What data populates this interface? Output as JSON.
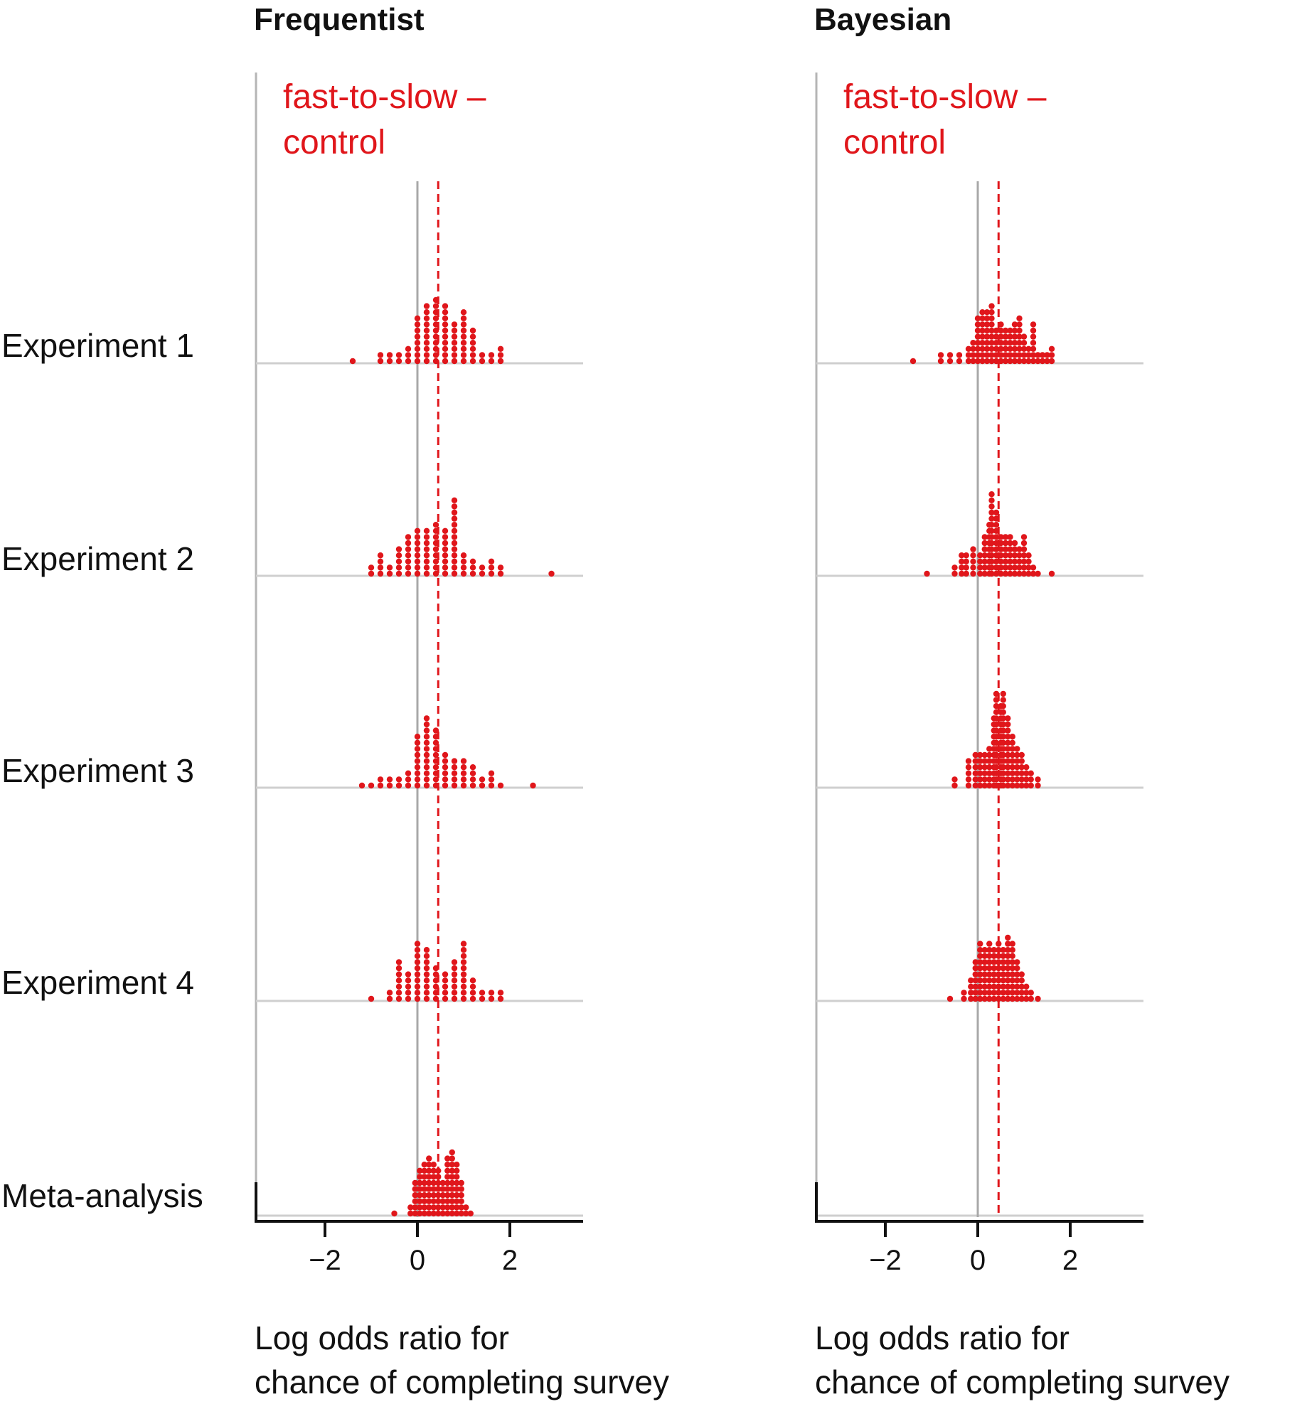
{
  "chart_data": [
    {
      "type": "dotplot",
      "title": "Frequentist",
      "rows": [
        "Experiment 1",
        "Experiment 2",
        "Experiment 3",
        "Experiment 4",
        "Meta-analysis"
      ],
      "xlabel_line1": "Log odds ratio for",
      "xlabel_line2": "chance of completing survey",
      "xticks": [
        -2,
        0,
        2
      ],
      "xtick_labels": [
        "−2",
        "0",
        "2"
      ],
      "xlim": [
        -3.5,
        3.5
      ],
      "reference_line": 0,
      "comparison_label_line1": "fast-to-slow –",
      "comparison_label_line2": "control",
      "mean_line": 0.45,
      "grid": false,
      "dot_color": "#e0161b",
      "series": [
        {
          "bins": [
            [
              -1.4,
              1
            ],
            [
              -0.8,
              2
            ],
            [
              -0.6,
              2
            ],
            [
              -0.4,
              2
            ],
            [
              -0.2,
              3
            ],
            [
              0,
              8
            ],
            [
              0.2,
              10
            ],
            [
              0.4,
              11
            ],
            [
              0.6,
              10
            ],
            [
              0.8,
              7
            ],
            [
              1.0,
              9
            ],
            [
              1.2,
              6
            ],
            [
              1.4,
              2
            ],
            [
              1.6,
              2
            ],
            [
              1.8,
              3
            ]
          ]
        },
        {
          "bins": [
            [
              -1.0,
              2
            ],
            [
              -0.8,
              4
            ],
            [
              -0.6,
              2
            ],
            [
              -0.4,
              5
            ],
            [
              -0.2,
              7
            ],
            [
              0,
              8
            ],
            [
              0.2,
              8
            ],
            [
              0.4,
              9
            ],
            [
              0.6,
              8
            ],
            [
              0.8,
              13
            ],
            [
              1.0,
              4
            ],
            [
              1.2,
              3
            ],
            [
              1.4,
              2
            ],
            [
              1.6,
              3
            ],
            [
              1.8,
              2
            ],
            [
              2.9,
              1
            ]
          ]
        },
        {
          "bins": [
            [
              -1.2,
              1
            ],
            [
              -1.0,
              1
            ],
            [
              -0.8,
              2
            ],
            [
              -0.6,
              2
            ],
            [
              -0.4,
              2
            ],
            [
              -0.2,
              3
            ],
            [
              0,
              9
            ],
            [
              0.2,
              12
            ],
            [
              0.4,
              10
            ],
            [
              0.6,
              6
            ],
            [
              0.8,
              5
            ],
            [
              1.0,
              5
            ],
            [
              1.2,
              4
            ],
            [
              1.4,
              2
            ],
            [
              1.6,
              3
            ],
            [
              1.8,
              1
            ],
            [
              2.5,
              1
            ]
          ]
        },
        {
          "bins": [
            [
              -1.0,
              1
            ],
            [
              -0.6,
              2
            ],
            [
              -0.4,
              7
            ],
            [
              -0.2,
              5
            ],
            [
              0,
              10
            ],
            [
              0.2,
              9
            ],
            [
              0.4,
              6
            ],
            [
              0.6,
              5
            ],
            [
              0.8,
              7
            ],
            [
              1.0,
              10
            ],
            [
              1.2,
              4
            ],
            [
              1.4,
              2
            ],
            [
              1.6,
              2
            ],
            [
              1.8,
              2
            ]
          ]
        },
        {
          "bins": [
            [
              -0.5,
              1
            ],
            [
              -0.15,
              2
            ],
            [
              -0.05,
              6
            ],
            [
              0.05,
              8
            ],
            [
              0.15,
              9
            ],
            [
              0.25,
              10
            ],
            [
              0.35,
              9
            ],
            [
              0.45,
              8
            ],
            [
              0.55,
              6
            ],
            [
              0.65,
              10
            ],
            [
              0.75,
              11
            ],
            [
              0.85,
              9
            ],
            [
              0.95,
              6
            ],
            [
              1.05,
              2
            ],
            [
              1.15,
              1
            ]
          ]
        }
      ]
    },
    {
      "type": "dotplot",
      "title": "Bayesian",
      "rows": [
        "Experiment 1",
        "Experiment 2",
        "Experiment 3",
        "Experiment 4",
        "Meta-analysis"
      ],
      "xlabel_line1": "Log odds ratio for",
      "xlabel_line2": "chance of completing survey",
      "xticks": [
        -2,
        0,
        2
      ],
      "xtick_labels": [
        "−2",
        "0",
        "2"
      ],
      "xlim": [
        -3.5,
        3.5
      ],
      "reference_line": 0,
      "comparison_label_line1": "fast-to-slow –",
      "comparison_label_line2": "control",
      "mean_line": 0.45,
      "grid": false,
      "dot_color": "#e0161b",
      "series": [
        {
          "bins": [
            [
              -1.4,
              1
            ],
            [
              -0.8,
              2
            ],
            [
              -0.6,
              2
            ],
            [
              -0.4,
              2
            ],
            [
              -0.2,
              3
            ],
            [
              -0.1,
              4
            ],
            [
              0,
              8
            ],
            [
              0.1,
              9
            ],
            [
              0.2,
              9
            ],
            [
              0.3,
              10
            ],
            [
              0.4,
              6
            ],
            [
              0.5,
              7
            ],
            [
              0.6,
              6
            ],
            [
              0.7,
              6
            ],
            [
              0.8,
              7
            ],
            [
              0.9,
              8
            ],
            [
              1.0,
              5
            ],
            [
              1.1,
              3
            ],
            [
              1.2,
              7
            ],
            [
              1.3,
              2
            ],
            [
              1.4,
              2
            ],
            [
              1.5,
              2
            ],
            [
              1.6,
              3
            ]
          ]
        },
        {
          "bins": [
            [
              -1.1,
              1
            ],
            [
              -0.5,
              2
            ],
            [
              -0.35,
              4
            ],
            [
              -0.25,
              4
            ],
            [
              -0.1,
              5
            ],
            [
              0.05,
              4
            ],
            [
              0.15,
              7
            ],
            [
              0.25,
              9
            ],
            [
              0.3,
              14
            ],
            [
              0.4,
              11
            ],
            [
              0.5,
              7
            ],
            [
              0.6,
              7
            ],
            [
              0.7,
              7
            ],
            [
              0.8,
              6
            ],
            [
              0.9,
              5
            ],
            [
              1.0,
              7
            ],
            [
              1.1,
              4
            ],
            [
              1.2,
              2
            ],
            [
              1.3,
              1
            ],
            [
              1.6,
              1
            ]
          ]
        },
        {
          "bins": [
            [
              -0.5,
              2
            ],
            [
              -0.2,
              5
            ],
            [
              -0.05,
              6
            ],
            [
              0.05,
              6
            ],
            [
              0.15,
              6
            ],
            [
              0.25,
              7
            ],
            [
              0.35,
              12
            ],
            [
              0.4,
              16
            ],
            [
              0.5,
              14
            ],
            [
              0.55,
              16
            ],
            [
              0.65,
              12
            ],
            [
              0.75,
              9
            ],
            [
              0.85,
              7
            ],
            [
              0.95,
              6
            ],
            [
              1.05,
              4
            ],
            [
              1.15,
              3
            ],
            [
              1.3,
              2
            ]
          ]
        },
        {
          "bins": [
            [
              -0.6,
              1
            ],
            [
              -0.3,
              2
            ],
            [
              -0.15,
              4
            ],
            [
              -0.05,
              7
            ],
            [
              0.05,
              10
            ],
            [
              0.15,
              9
            ],
            [
              0.25,
              10
            ],
            [
              0.35,
              9
            ],
            [
              0.45,
              10
            ],
            [
              0.55,
              9
            ],
            [
              0.65,
              11
            ],
            [
              0.75,
              10
            ],
            [
              0.85,
              7
            ],
            [
              0.95,
              5
            ],
            [
              1.05,
              3
            ],
            [
              1.15,
              2
            ],
            [
              1.3,
              1
            ]
          ]
        },
        {
          "bins": []
        }
      ]
    }
  ]
}
